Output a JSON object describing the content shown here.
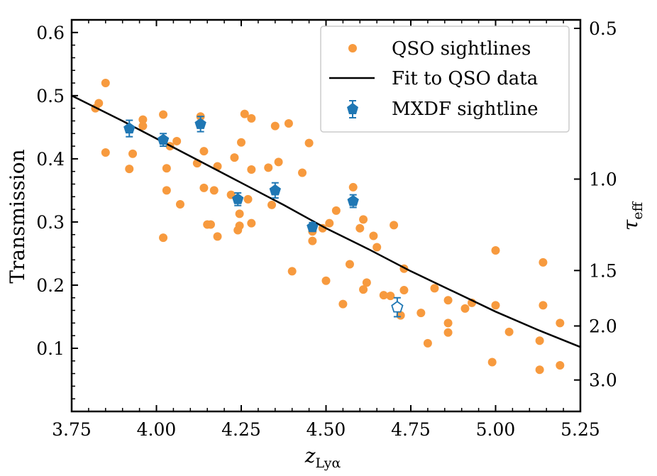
{
  "chart_data": {
    "type": "scatter",
    "xlabel": "z",
    "xlabel_sub": "Lyα",
    "ylabel": "Transmission",
    "y2label": "τ",
    "y2label_sub": "eff",
    "xlim": [
      3.75,
      5.25
    ],
    "ylim": [
      0.0,
      0.62
    ],
    "x_ticks": [
      3.75,
      4.0,
      4.25,
      4.5,
      4.75,
      5.0,
      5.25
    ],
    "x_tick_labels": [
      "3.75",
      "4.00",
      "4.25",
      "4.50",
      "4.75",
      "5.00",
      "5.25"
    ],
    "y_ticks": [
      0.1,
      0.2,
      0.3,
      0.4,
      0.5,
      0.6
    ],
    "y_tick_labels": [
      "0.1",
      "0.2",
      "0.3",
      "0.4",
      "0.5",
      "0.6"
    ],
    "tau_ticks": [
      0.5,
      1.0,
      1.5,
      2.0,
      3.0
    ],
    "tau_tick_labels": [
      "0.5",
      "1.0",
      "1.5",
      "2.0",
      "3.0"
    ],
    "legend_position": "top-right",
    "colors": {
      "qso": "#f79a3e",
      "fit": "#000000",
      "mxdf": "#1f77b4"
    },
    "series": [
      {
        "name": "QSO sightlines",
        "kind": "points",
        "points": [
          [
            3.82,
            0.48
          ],
          [
            3.83,
            0.488
          ],
          [
            3.85,
            0.52
          ],
          [
            3.85,
            0.41
          ],
          [
            3.92,
            0.384
          ],
          [
            3.93,
            0.408
          ],
          [
            3.96,
            0.462
          ],
          [
            3.96,
            0.452
          ],
          [
            4.02,
            0.47
          ],
          [
            4.02,
            0.275
          ],
          [
            4.03,
            0.385
          ],
          [
            4.03,
            0.35
          ],
          [
            4.04,
            0.42
          ],
          [
            4.06,
            0.428
          ],
          [
            4.07,
            0.328
          ],
          [
            4.12,
            0.393
          ],
          [
            4.13,
            0.467
          ],
          [
            4.14,
            0.412
          ],
          [
            4.14,
            0.354
          ],
          [
            4.15,
            0.296
          ],
          [
            4.16,
            0.296
          ],
          [
            4.17,
            0.35
          ],
          [
            4.18,
            0.388
          ],
          [
            4.18,
            0.277
          ],
          [
            4.22,
            0.343
          ],
          [
            4.23,
            0.402
          ],
          [
            4.24,
            0.287
          ],
          [
            4.245,
            0.313
          ],
          [
            4.245,
            0.294
          ],
          [
            4.25,
            0.426
          ],
          [
            4.26,
            0.471
          ],
          [
            4.27,
            0.336
          ],
          [
            4.28,
            0.298
          ],
          [
            4.28,
            0.383
          ],
          [
            4.28,
            0.464
          ],
          [
            4.33,
            0.386
          ],
          [
            4.34,
            0.327
          ],
          [
            4.35,
            0.452
          ],
          [
            4.36,
            0.395
          ],
          [
            4.39,
            0.456
          ],
          [
            4.4,
            0.222
          ],
          [
            4.43,
            0.378
          ],
          [
            4.45,
            0.425
          ],
          [
            4.46,
            0.27
          ],
          [
            4.46,
            0.285
          ],
          [
            4.49,
            0.29
          ],
          [
            4.5,
            0.207
          ],
          [
            4.51,
            0.298
          ],
          [
            4.53,
            0.318
          ],
          [
            4.55,
            0.17
          ],
          [
            4.57,
            0.233
          ],
          [
            4.58,
            0.355
          ],
          [
            4.6,
            0.29
          ],
          [
            4.61,
            0.304
          ],
          [
            4.61,
            0.193
          ],
          [
            4.62,
            0.204
          ],
          [
            4.64,
            0.278
          ],
          [
            4.65,
            0.26
          ],
          [
            4.67,
            0.184
          ],
          [
            4.69,
            0.183
          ],
          [
            4.7,
            0.295
          ],
          [
            4.72,
            0.152
          ],
          [
            4.73,
            0.226
          ],
          [
            4.73,
            0.192
          ],
          [
            4.78,
            0.156
          ],
          [
            4.8,
            0.108
          ],
          [
            4.82,
            0.195
          ],
          [
            4.86,
            0.14
          ],
          [
            4.86,
            0.176
          ],
          [
            4.86,
            0.125
          ],
          [
            4.91,
            0.163
          ],
          [
            4.93,
            0.172
          ],
          [
            4.99,
            0.078
          ],
          [
            5.0,
            0.255
          ],
          [
            5.0,
            0.168
          ],
          [
            5.04,
            0.126
          ],
          [
            5.13,
            0.112
          ],
          [
            5.13,
            0.066
          ],
          [
            5.14,
            0.236
          ],
          [
            5.14,
            0.168
          ],
          [
            5.19,
            0.073
          ],
          [
            5.19,
            0.14
          ]
        ]
      },
      {
        "name": "Fit to QSO data",
        "kind": "line",
        "points": [
          [
            3.75,
            0.5
          ],
          [
            3.9,
            0.46
          ],
          [
            4.0,
            0.432
          ],
          [
            4.125,
            0.397
          ],
          [
            4.25,
            0.362
          ],
          [
            4.375,
            0.327
          ],
          [
            4.5,
            0.29
          ],
          [
            4.625,
            0.257
          ],
          [
            4.75,
            0.222
          ],
          [
            4.875,
            0.19
          ],
          [
            5.0,
            0.158
          ],
          [
            5.125,
            0.129
          ],
          [
            5.25,
            0.102
          ]
        ]
      },
      {
        "name": "MXDF sightline",
        "kind": "errorbar",
        "points": [
          [
            3.92,
            0.448,
            0.013
          ],
          [
            4.02,
            0.43,
            0.01
          ],
          [
            4.13,
            0.455,
            0.012
          ],
          [
            4.24,
            0.336,
            0.01
          ],
          [
            4.35,
            0.35,
            0.012
          ],
          [
            4.46,
            0.292,
            0.007
          ],
          [
            4.58,
            0.333,
            0.01
          ]
        ],
        "open_points": [
          [
            4.71,
            0.165,
            0.015
          ]
        ]
      }
    ]
  }
}
